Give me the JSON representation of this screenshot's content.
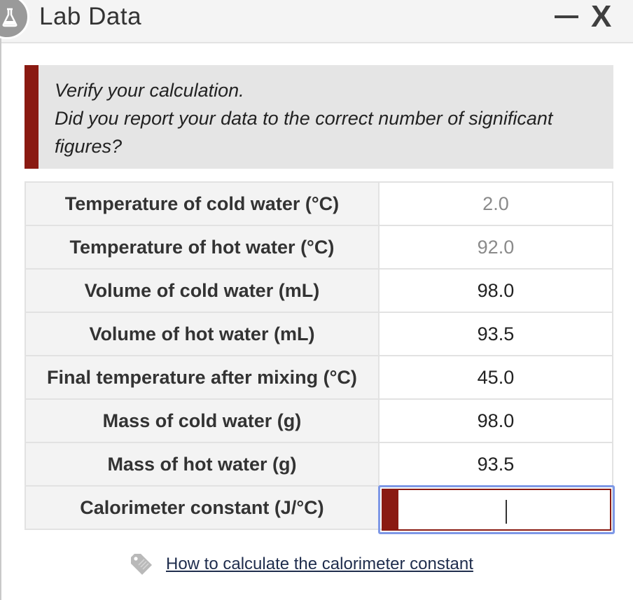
{
  "window": {
    "title": "Lab Data",
    "minimize_glyph": "—",
    "close_glyph": "X",
    "icon": "flask-icon"
  },
  "notice": {
    "line1": "Verify your calculation.",
    "line2": "Did you report your data to the correct number of significant figures?",
    "accent_color": "#8a1a12"
  },
  "table": {
    "rows": [
      {
        "label": "Temperature of cold water (°C)",
        "value": "2.0"
      },
      {
        "label": "Temperature of hot water (°C)",
        "value": "92.0"
      },
      {
        "label": "Volume of cold water (mL)",
        "value": "98.0"
      },
      {
        "label": "Volume of hot water (mL)",
        "value": "93.5"
      },
      {
        "label": "Final temperature after mixing (°C)",
        "value": "45.0"
      },
      {
        "label": "Mass of cold water (g)",
        "value": "98.0"
      },
      {
        "label": "Mass of hot water (g)",
        "value": "93.5"
      },
      {
        "label": "Calorimeter constant (J/°C)",
        "value": ""
      }
    ]
  },
  "help": {
    "link_text": "How to calculate the calorimeter constant",
    "icon": "tag-icon"
  }
}
